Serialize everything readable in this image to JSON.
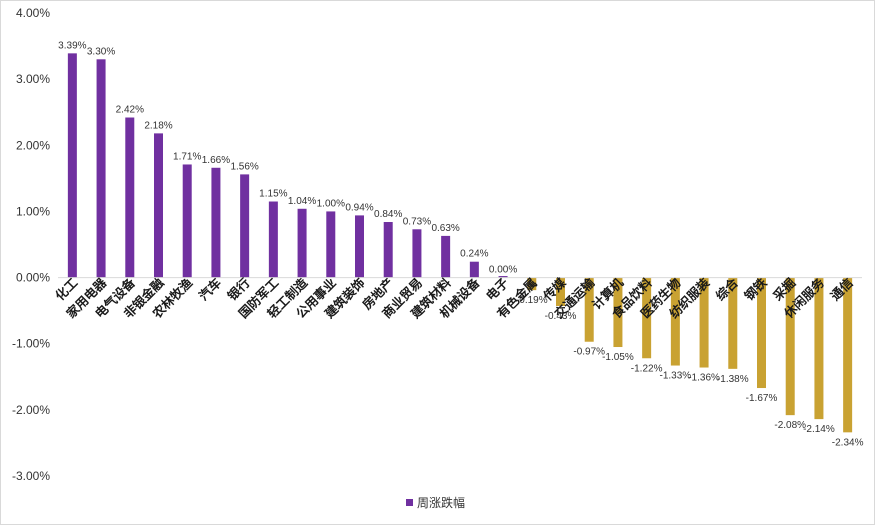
{
  "chart_data": {
    "type": "bar",
    "title": "",
    "xlabel": "",
    "ylabel": "",
    "ylim": [
      -3.0,
      4.0
    ],
    "y_ticks": [
      "4.00%",
      "3.00%",
      "2.00%",
      "1.00%",
      "0.00%",
      "-1.00%",
      "-2.00%",
      "-3.00%"
    ],
    "grid": false,
    "legend_position": "bottom",
    "series": [
      {
        "name": "周涨跌幅",
        "values": [
          3.39,
          3.3,
          2.42,
          2.18,
          1.71,
          1.66,
          1.56,
          1.15,
          1.04,
          1.0,
          0.94,
          0.84,
          0.73,
          0.63,
          0.24,
          0.0,
          -0.19,
          -0.43,
          -0.97,
          -1.05,
          -1.22,
          -1.33,
          -1.36,
          -1.38,
          -1.67,
          -2.08,
          -2.14,
          -2.34
        ],
        "labels": [
          "3.39%",
          "3.30%",
          "2.42%",
          "2.18%",
          "1.71%",
          "1.66%",
          "1.56%",
          "1.15%",
          "1.04%",
          "1.00%",
          "0.94%",
          "0.84%",
          "0.73%",
          "0.63%",
          "0.24%",
          "0.00%",
          "-0.19%",
          "-0.43%",
          "-0.97%",
          "-1.05%",
          "-1.22%",
          "-1.33%",
          "-1.36%",
          "-1.38%",
          "-1.67%",
          "-2.08%",
          "-2.14%",
          "-2.34%"
        ]
      }
    ],
    "categories": [
      "化工",
      "家用电器",
      "电气设备",
      "非银金融",
      "农林牧渔",
      "汽车",
      "银行",
      "国防军工",
      "轻工制造",
      "公用事业",
      "建筑装饰",
      "房地产",
      "商业贸易",
      "建筑材料",
      "机械设备",
      "电子",
      "有色金属",
      "传媒",
      "交通运输",
      "计算机",
      "食品饮料",
      "医药生物",
      "纺织服装",
      "综合",
      "钢铁",
      "采掘",
      "休闲服务",
      "通信"
    ],
    "colors": {
      "positive": "#7030A0",
      "negative": "#C9A232",
      "axis": "#D9D9D9",
      "border": "#D9D9D9"
    }
  }
}
